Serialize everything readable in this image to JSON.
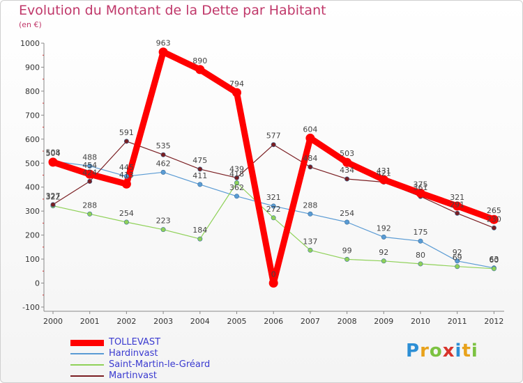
{
  "chart_data": {
    "type": "line",
    "title": "Evolution du Montant de la Dette par Habitant",
    "subtitle": "(en €)",
    "xlabel": "",
    "ylabel": "",
    "ylim": [
      -100,
      1000
    ],
    "y_ticks": [
      "-100",
      "0",
      "100",
      "200",
      "300",
      "400",
      "500",
      "600",
      "700",
      "800",
      "900",
      "1000"
    ],
    "categories": [
      "2000",
      "2001",
      "2002",
      "2003",
      "2004",
      "2005",
      "2006",
      "2007",
      "2008",
      "2009",
      "2010",
      "2011",
      "2012"
    ],
    "grid": false,
    "legend_position": "bottom-left",
    "series": [
      {
        "name": "TOLLEVAST",
        "color": "#ff0000",
        "values": [
          504,
          454,
          413,
          963,
          890,
          794,
          0,
          604,
          503,
          431,
          375,
          321,
          265
        ],
        "labels": [
          "504",
          "454",
          "413",
          "963",
          "890",
          "794",
          "0",
          "604",
          "503",
          "431",
          "375",
          "321",
          "265"
        ]
      },
      {
        "name": "Hardinvast",
        "color": "#5a9bd4",
        "values": [
          508,
          488,
          445,
          462,
          411,
          362,
          321,
          288,
          254,
          192,
          175,
          92,
          63
        ],
        "labels": [
          "508",
          "488",
          "445",
          "462",
          "411",
          "362",
          "321",
          "288",
          "254",
          "192",
          "175",
          "92",
          "63"
        ]
      },
      {
        "name": "Saint-Martin-le-Gréard",
        "color": "#8fd158",
        "values": [
          322,
          288,
          254,
          223,
          184,
          418,
          272,
          137,
          99,
          92,
          80,
          69,
          60
        ],
        "labels": [
          "322",
          "288",
          "254",
          "223",
          "184",
          "418",
          "272",
          "137",
          "99",
          "92",
          "80",
          "69",
          "60"
        ]
      },
      {
        "name": "Martinvast",
        "color": "#7a1e22",
        "values": [
          327,
          424,
          591,
          535,
          475,
          439,
          577,
          484,
          434,
          421,
          361,
          291,
          230
        ],
        "labels": [
          "327",
          "424",
          "591",
          "535",
          "475",
          "439",
          "577",
          "484",
          "434",
          "421",
          "361",
          "291",
          "230"
        ]
      }
    ]
  },
  "logo": {
    "text": "Proxiti"
  }
}
